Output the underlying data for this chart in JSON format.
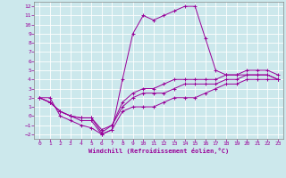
{
  "xlabel": "Windchill (Refroidissement éolien,°C)",
  "xlim": [
    -0.5,
    23.5
  ],
  "ylim": [
    -2.5,
    12.5
  ],
  "xticks": [
    0,
    1,
    2,
    3,
    4,
    5,
    6,
    7,
    8,
    9,
    10,
    11,
    12,
    13,
    14,
    15,
    16,
    17,
    18,
    19,
    20,
    21,
    22,
    23
  ],
  "yticks": [
    -2,
    -1,
    0,
    1,
    2,
    3,
    4,
    5,
    6,
    7,
    8,
    9,
    10,
    11,
    12
  ],
  "bg_color": "#cce8ec",
  "grid_color": "#ffffff",
  "line_color": "#990099",
  "spine_color": "#888888",
  "lines": [
    {
      "x": [
        0,
        1,
        2,
        3,
        4,
        5,
        6,
        7,
        8,
        9,
        10,
        11,
        12,
        13,
        14,
        15,
        16,
        17,
        18,
        19,
        20,
        21,
        22,
        23
      ],
      "y": [
        2,
        2,
        0,
        -0.5,
        -1,
        -1.3,
        -2,
        -1.5,
        4,
        9,
        11,
        10.5,
        11,
        11.5,
        12,
        12,
        8.5,
        5,
        4.5,
        4.5,
        4.5,
        4.5,
        4.5,
        4
      ]
    },
    {
      "x": [
        0,
        1,
        2,
        3,
        4,
        5,
        6,
        7,
        8,
        9,
        10,
        11,
        12,
        13,
        14,
        15,
        16,
        17,
        18,
        19,
        20,
        21,
        22,
        23
      ],
      "y": [
        2,
        1.5,
        0.5,
        0,
        -0.5,
        -0.5,
        -2,
        -1.5,
        0.5,
        1,
        1,
        1,
        1.5,
        2,
        2,
        2,
        2.5,
        3,
        3.5,
        3.5,
        4,
        4,
        4,
        4
      ]
    },
    {
      "x": [
        0,
        1,
        2,
        3,
        4,
        5,
        6,
        7,
        8,
        9,
        10,
        11,
        12,
        13,
        14,
        15,
        16,
        17,
        18,
        19,
        20,
        21,
        22,
        23
      ],
      "y": [
        2,
        1.5,
        0.5,
        0,
        -0.2,
        -0.2,
        -1.8,
        -1,
        1,
        2,
        2.5,
        2.5,
        2.5,
        3,
        3.5,
        3.5,
        3.5,
        3.5,
        4,
        4,
        4.5,
        4.5,
        4.5,
        4
      ]
    },
    {
      "x": [
        0,
        1,
        2,
        3,
        4,
        5,
        6,
        7,
        8,
        9,
        10,
        11,
        12,
        13,
        14,
        15,
        16,
        17,
        18,
        19,
        20,
        21,
        22,
        23
      ],
      "y": [
        2,
        1.5,
        0.5,
        0,
        -0.2,
        -0.2,
        -1.5,
        -1,
        1.5,
        2.5,
        3,
        3,
        3.5,
        4,
        4,
        4,
        4,
        4,
        4.5,
        4.5,
        5,
        5,
        5,
        4.5
      ]
    }
  ]
}
